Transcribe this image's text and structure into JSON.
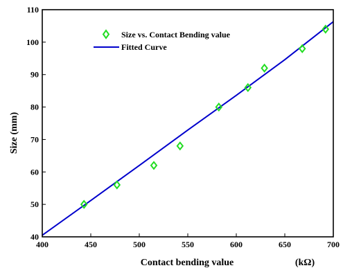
{
  "chart_data": {
    "type": "scatter",
    "xlabel": "Contact bending value",
    "xunit": "(kΩ)",
    "ylabel": "Size (mm)",
    "xlim": [
      400,
      700
    ],
    "ylim": [
      40,
      110
    ],
    "xticks": [
      400,
      450,
      500,
      550,
      600,
      650,
      700
    ],
    "yticks": [
      40,
      50,
      60,
      70,
      80,
      90,
      100,
      110
    ],
    "grid": false,
    "legend_position": "top-left",
    "series": [
      {
        "name": "Size vs. Contact Bending value",
        "kind": "scatter",
        "marker": "diamond",
        "color": "#22dd22",
        "x": [
          443,
          477,
          515,
          542,
          582,
          612,
          629,
          668,
          692
        ],
        "y": [
          50,
          56,
          62,
          68,
          80,
          86,
          92,
          98,
          104
        ]
      },
      {
        "name": "Fitted Curve",
        "kind": "line",
        "color": "#0000cc",
        "x": [
          400,
          450,
          500,
          550,
          600,
          650,
          700
        ],
        "y": [
          40.5,
          51.2,
          62.0,
          72.9,
          83.6,
          94.6,
          106.3
        ]
      }
    ]
  }
}
